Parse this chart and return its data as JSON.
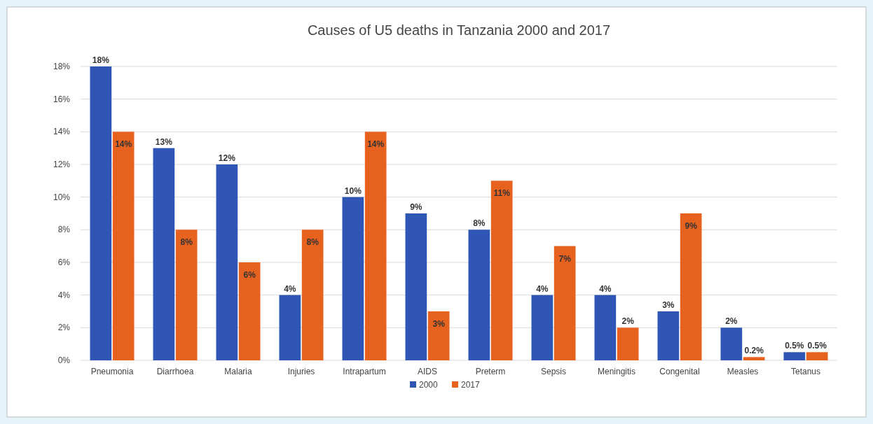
{
  "chart_data": {
    "type": "bar",
    "title": "Causes of U5 deaths in Tanzania 2000 and 2017",
    "categories": [
      "Pneumonia",
      "Diarrhoea",
      "Malaria",
      "Injuries",
      "Intrapartum",
      "AIDS",
      "Preterm",
      "Sepsis",
      "Meningitis",
      "Congenital",
      "Measles",
      "Tetanus"
    ],
    "series": [
      {
        "name": "2000",
        "color": "#2f55b5",
        "values": [
          18,
          13,
          12,
          4,
          10,
          9,
          8,
          4,
          4,
          3,
          2,
          0.5
        ],
        "value_labels": [
          "18%",
          "13%",
          "12%",
          "4%",
          "10%",
          "9%",
          "8%",
          "4%",
          "4%",
          "3%",
          "2%",
          "0.5%"
        ]
      },
      {
        "name": "2017",
        "color": "#e8621f",
        "values": [
          14,
          8,
          6,
          8,
          14,
          3,
          11,
          7,
          2,
          9,
          0.2,
          0.5
        ],
        "value_labels": [
          "14%",
          "8%",
          "6%",
          "8%",
          "14%",
          "3%",
          "11%",
          "7%",
          "2%",
          "9%",
          "0.2%",
          "0.5%"
        ]
      }
    ],
    "ylim": [
      0,
      18
    ],
    "yticks": [
      {
        "value": 0,
        "label": "0%"
      },
      {
        "value": 2,
        "label": "2%"
      },
      {
        "value": 4,
        "label": "4%"
      },
      {
        "value": 6,
        "label": "6%"
      },
      {
        "value": 8,
        "label": "8%"
      },
      {
        "value": 10,
        "label": "10%"
      },
      {
        "value": 12,
        "label": "12%"
      },
      {
        "value": 14,
        "label": "14%"
      },
      {
        "value": 16,
        "label": "16%"
      },
      {
        "value": 18,
        "label": "18%"
      }
    ],
    "grid": "y",
    "legend": "bottom"
  }
}
